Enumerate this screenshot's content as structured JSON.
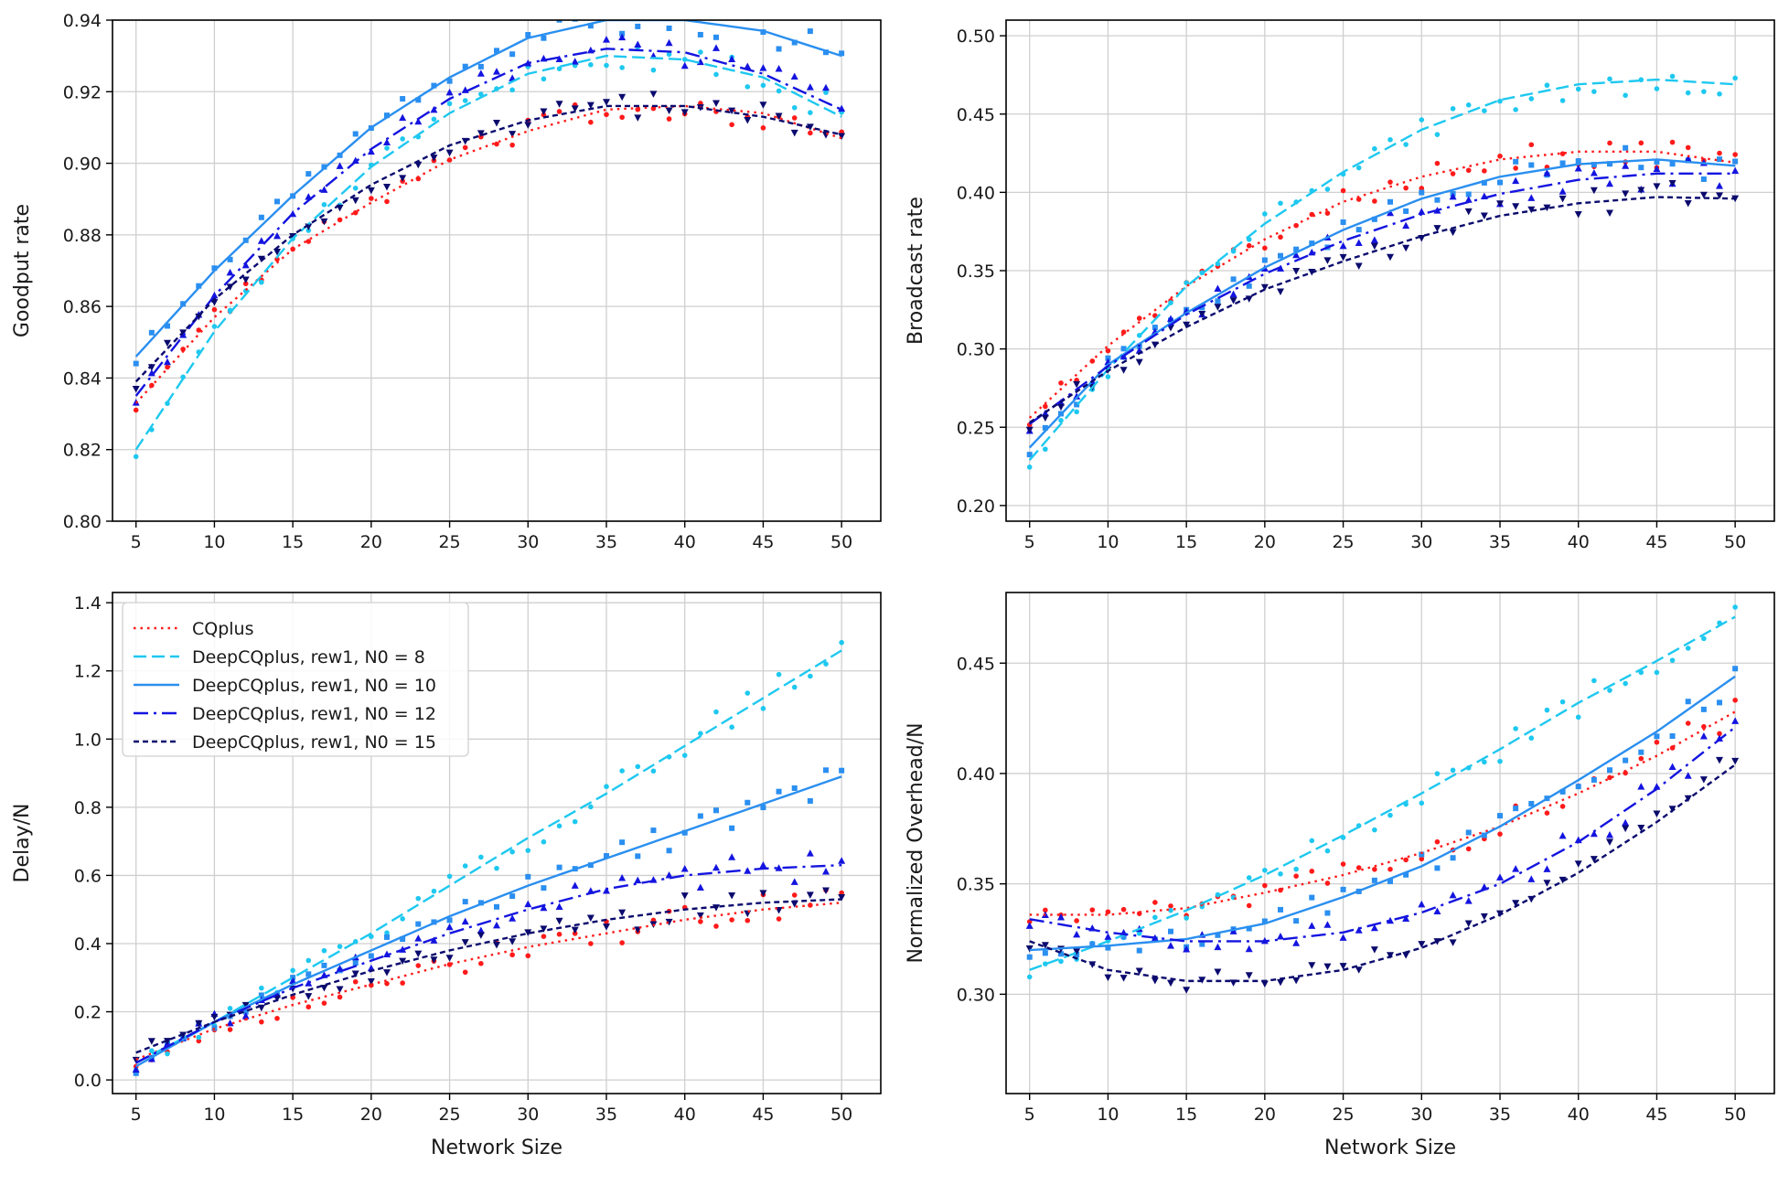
{
  "legend": [
    {
      "label": "CQplus",
      "color": "#ff1a1a",
      "dash": "dotted",
      "marker": "dot"
    },
    {
      "label": "DeepCQplus, rew1, N0 = 8",
      "color": "#1ec8f0",
      "dash": "dashed",
      "marker": "dot"
    },
    {
      "label": "DeepCQplus, rew1, N0 = 10",
      "color": "#2a8ff0",
      "dash": "solid",
      "marker": "square"
    },
    {
      "label": "DeepCQplus, rew1, N0 = 12",
      "color": "#1414e0",
      "dash": "dashdot",
      "marker": "triangle-up"
    },
    {
      "label": "DeepCQplus, rew1, N0 = 15",
      "color": "#0a0a6e",
      "dash": "densedash",
      "marker": "triangle-down"
    }
  ],
  "chart_data": [
    {
      "type": "line",
      "position": "top-left",
      "title": "",
      "xlabel": "",
      "ylabel": "Goodput rate",
      "xlim": [
        3.5,
        52.5
      ],
      "ylim": [
        0.8,
        0.94
      ],
      "xticks": [
        5,
        10,
        15,
        20,
        25,
        30,
        35,
        40,
        45,
        50
      ],
      "yticks": [
        0.8,
        0.82,
        0.84,
        0.86,
        0.88,
        0.9,
        0.92,
        0.94
      ],
      "tick_format": 2,
      "grid": true,
      "series": [
        {
          "name": "CQplus",
          "x": [
            5,
            10,
            15,
            20,
            25,
            30,
            35,
            40,
            45,
            50
          ],
          "y": [
            0.833,
            0.857,
            0.876,
            0.889,
            0.901,
            0.909,
            0.915,
            0.916,
            0.914,
            0.907
          ]
        },
        {
          "name": "DeepCQplus, rew1, N0 = 8",
          "x": [
            5,
            10,
            15,
            20,
            25,
            30,
            35,
            40,
            45,
            50
          ],
          "y": [
            0.82,
            0.853,
            0.879,
            0.899,
            0.914,
            0.925,
            0.93,
            0.929,
            0.924,
            0.913
          ]
        },
        {
          "name": "DeepCQplus, rew1, N0 = 10",
          "x": [
            5,
            10,
            15,
            20,
            25,
            30,
            35,
            40,
            45,
            50
          ],
          "y": [
            0.846,
            0.87,
            0.891,
            0.91,
            0.924,
            0.935,
            0.94,
            0.94,
            0.937,
            0.93
          ]
        },
        {
          "name": "DeepCQplus, rew1, N0 = 12",
          "x": [
            5,
            10,
            15,
            20,
            25,
            30,
            35,
            40,
            45,
            50
          ],
          "y": [
            0.835,
            0.863,
            0.886,
            0.904,
            0.918,
            0.928,
            0.932,
            0.931,
            0.925,
            0.915
          ]
        },
        {
          "name": "DeepCQplus, rew1, N0 = 15",
          "x": [
            5,
            10,
            15,
            20,
            25,
            30,
            35,
            40,
            45,
            50
          ],
          "y": [
            0.839,
            0.862,
            0.88,
            0.894,
            0.905,
            0.912,
            0.916,
            0.916,
            0.913,
            0.908
          ]
        }
      ]
    },
    {
      "type": "line",
      "position": "top-right",
      "title": "",
      "xlabel": "",
      "ylabel": "Broadcast rate",
      "xlim": [
        3.5,
        52.5
      ],
      "ylim": [
        0.19,
        0.51
      ],
      "xticks": [
        5,
        10,
        15,
        20,
        25,
        30,
        35,
        40,
        45,
        50
      ],
      "yticks": [
        0.2,
        0.25,
        0.3,
        0.35,
        0.4,
        0.45,
        0.5
      ],
      "tick_format": 2,
      "grid": true,
      "series": [
        {
          "name": "CQplus",
          "x": [
            5,
            10,
            15,
            20,
            25,
            30,
            35,
            40,
            45,
            50
          ],
          "y": [
            0.256,
            0.302,
            0.34,
            0.37,
            0.394,
            0.41,
            0.421,
            0.426,
            0.426,
            0.419
          ]
        },
        {
          "name": "DeepCQplus, rew1, N0 = 8",
          "x": [
            5,
            10,
            15,
            20,
            25,
            30,
            35,
            40,
            45,
            50
          ],
          "y": [
            0.229,
            0.287,
            0.34,
            0.38,
            0.413,
            0.44,
            0.459,
            0.469,
            0.472,
            0.469
          ]
        },
        {
          "name": "DeepCQplus, rew1, N0 = 10",
          "x": [
            5,
            10,
            15,
            20,
            25,
            30,
            35,
            40,
            45,
            50
          ],
          "y": [
            0.237,
            0.29,
            0.323,
            0.352,
            0.376,
            0.396,
            0.41,
            0.418,
            0.421,
            0.417
          ]
        },
        {
          "name": "DeepCQplus, rew1, N0 = 12",
          "x": [
            5,
            10,
            15,
            20,
            25,
            30,
            35,
            40,
            45,
            50
          ],
          "y": [
            0.252,
            0.289,
            0.322,
            0.348,
            0.369,
            0.386,
            0.399,
            0.408,
            0.412,
            0.412
          ]
        },
        {
          "name": "DeepCQplus, rew1, N0 = 15",
          "x": [
            5,
            10,
            15,
            20,
            25,
            30,
            35,
            40,
            45,
            50
          ],
          "y": [
            0.253,
            0.286,
            0.314,
            0.338,
            0.356,
            0.372,
            0.385,
            0.393,
            0.397,
            0.396
          ]
        }
      ]
    },
    {
      "type": "line",
      "position": "bottom-left",
      "title": "",
      "xlabel": "Network Size",
      "ylabel": "Delay/N",
      "xlim": [
        3.5,
        52.5
      ],
      "ylim": [
        -0.04,
        1.43
      ],
      "xticks": [
        5,
        10,
        15,
        20,
        25,
        30,
        35,
        40,
        45,
        50
      ],
      "yticks": [
        0.0,
        0.2,
        0.4,
        0.6,
        0.8,
        1.0,
        1.2,
        1.4
      ],
      "tick_format": 1,
      "grid": true,
      "legend": "upper-left",
      "series": [
        {
          "name": "CQplus",
          "x": [
            5,
            10,
            15,
            20,
            25,
            30,
            35,
            40,
            45,
            50
          ],
          "y": [
            0.06,
            0.15,
            0.22,
            0.28,
            0.34,
            0.39,
            0.43,
            0.47,
            0.5,
            0.52
          ]
        },
        {
          "name": "DeepCQplus, rew1, N0 = 8",
          "x": [
            5,
            10,
            15,
            20,
            25,
            30,
            35,
            40,
            45,
            50
          ],
          "y": [
            0.05,
            0.17,
            0.3,
            0.43,
            0.57,
            0.71,
            0.84,
            0.98,
            1.12,
            1.26
          ]
        },
        {
          "name": "DeepCQplus, rew1, N0 = 10",
          "x": [
            5,
            10,
            15,
            20,
            25,
            30,
            35,
            40,
            45,
            50
          ],
          "y": [
            0.04,
            0.17,
            0.28,
            0.38,
            0.48,
            0.57,
            0.65,
            0.73,
            0.81,
            0.89
          ]
        },
        {
          "name": "DeepCQplus, rew1, N0 = 12",
          "x": [
            5,
            10,
            15,
            20,
            25,
            30,
            35,
            40,
            45,
            50
          ],
          "y": [
            0.05,
            0.17,
            0.27,
            0.35,
            0.43,
            0.5,
            0.56,
            0.6,
            0.62,
            0.63
          ]
        },
        {
          "name": "DeepCQplus, rew1, N0 = 15",
          "x": [
            5,
            10,
            15,
            20,
            25,
            30,
            35,
            40,
            45,
            50
          ],
          "y": [
            0.08,
            0.17,
            0.25,
            0.32,
            0.38,
            0.43,
            0.47,
            0.5,
            0.52,
            0.53
          ]
        }
      ]
    },
    {
      "type": "line",
      "position": "bottom-right",
      "title": "",
      "xlabel": "Network Size",
      "ylabel": "Normalized Overhead/N",
      "xlim": [
        3.5,
        52.5
      ],
      "ylim": [
        0.255,
        0.482
      ],
      "xticks": [
        5,
        10,
        15,
        20,
        25,
        30,
        35,
        40,
        45,
        50
      ],
      "yticks": [
        0.3,
        0.35,
        0.4,
        0.45
      ],
      "tick_format": 2,
      "grid": true,
      "series": [
        {
          "name": "CQplus",
          "x": [
            5,
            10,
            15,
            20,
            25,
            30,
            35,
            40,
            45,
            50
          ],
          "y": [
            0.336,
            0.336,
            0.339,
            0.346,
            0.354,
            0.364,
            0.376,
            0.391,
            0.408,
            0.428
          ]
        },
        {
          "name": "DeepCQplus, rew1, N0 = 8",
          "x": [
            5,
            10,
            15,
            20,
            25,
            30,
            35,
            40,
            45,
            50
          ],
          "y": [
            0.311,
            0.324,
            0.338,
            0.354,
            0.372,
            0.391,
            0.411,
            0.432,
            0.451,
            0.471
          ]
        },
        {
          "name": "DeepCQplus, rew1, N0 = 10",
          "x": [
            5,
            10,
            15,
            20,
            25,
            30,
            35,
            40,
            45,
            50
          ],
          "y": [
            0.32,
            0.322,
            0.325,
            0.332,
            0.344,
            0.358,
            0.376,
            0.397,
            0.419,
            0.444
          ]
        },
        {
          "name": "DeepCQplus, rew1, N0 = 12",
          "x": [
            5,
            10,
            15,
            20,
            25,
            30,
            35,
            40,
            45,
            50
          ],
          "y": [
            0.334,
            0.328,
            0.324,
            0.324,
            0.328,
            0.337,
            0.35,
            0.369,
            0.393,
            0.421
          ]
        },
        {
          "name": "DeepCQplus, rew1, N0 = 15",
          "x": [
            5,
            10,
            15,
            20,
            25,
            30,
            35,
            40,
            45,
            50
          ],
          "y": [
            0.324,
            0.311,
            0.306,
            0.306,
            0.311,
            0.321,
            0.336,
            0.355,
            0.378,
            0.404
          ]
        }
      ]
    }
  ]
}
